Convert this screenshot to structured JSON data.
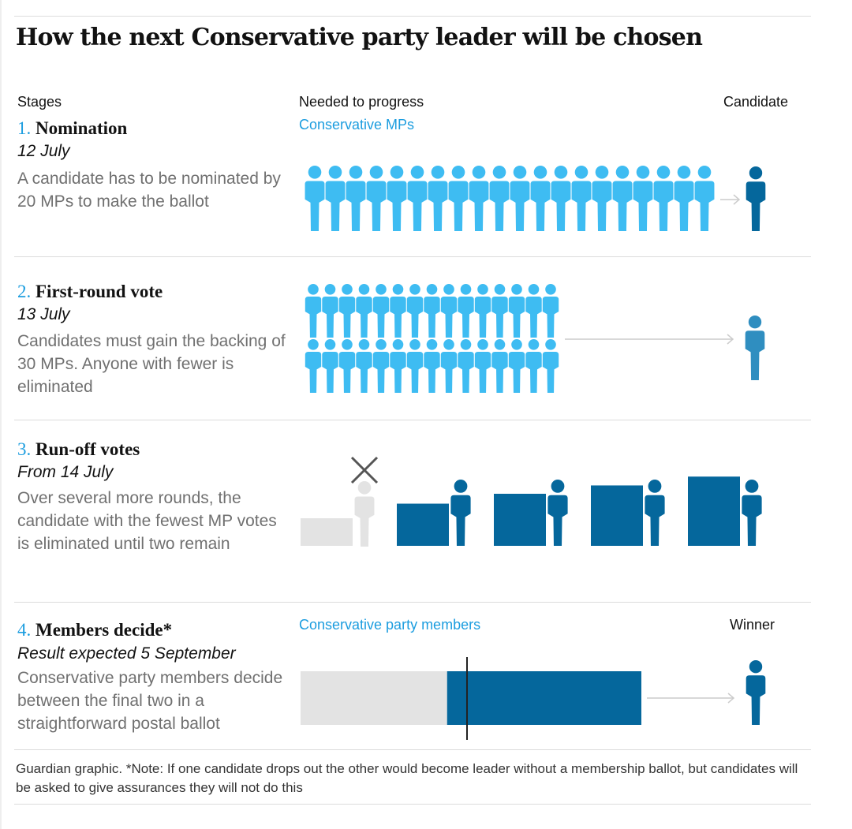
{
  "title": "How the next Conservative party leader will be chosen",
  "headers": {
    "stages": "Stages",
    "needed": "Needed to progress",
    "candidate": "Candidate"
  },
  "series": {
    "mps": "Conservative MPs",
    "members": "Conservative party members",
    "winner": "Winner"
  },
  "stages": [
    {
      "number": "1.",
      "name": "Nomination",
      "date": "12 July",
      "desc": "A candidate has to be nominated by 20 MPs to make the ballot",
      "mps_needed": 20
    },
    {
      "number": "2.",
      "name": "First-round vote",
      "date": "13 July",
      "desc": "Candidates must gain the backing of 30 MPs. Anyone with fewer is eliminated",
      "mps_needed": 30
    },
    {
      "number": "3.",
      "name": "Run-off votes",
      "date": "From 14 July",
      "desc": "Over several more rounds, the candidate with the fewest MP votes is eliminated until two remain",
      "rounds": [
        {
          "relative_vote_share": 0.53,
          "eliminated": true
        },
        {
          "relative_vote_share": 0.81,
          "eliminated": false
        },
        {
          "relative_vote_share": 1.0,
          "eliminated": false
        },
        {
          "relative_vote_share": 1.16,
          "eliminated": false
        },
        {
          "relative_vote_share": 1.33,
          "eliminated": false
        }
      ]
    },
    {
      "number": "4.",
      "name": "Members decide*",
      "date": "Result expected 5 September",
      "desc": "Conservative party members decide between the final two in a straightforward postal ballot",
      "members_split": [
        0.43,
        0.57
      ]
    }
  ],
  "footnote": "Guardian graphic. *Note: If one candidate drops out the other would become leader without a membership ballot, but candidates will be asked to give assurances they will not do this",
  "colors": {
    "mp_blue": "#3ebcf2",
    "candidate_dark": "#05679c",
    "candidate_mid": "#2f8ec0",
    "eliminated_grey": "#e3e3e3",
    "accent_text": "#1c9ddf",
    "arrow_grey": "#cccccc"
  }
}
